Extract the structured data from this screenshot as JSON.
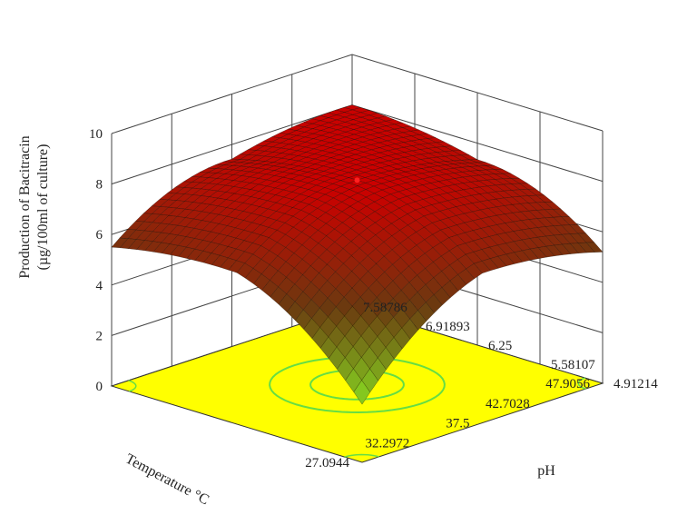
{
  "chart_data": {
    "type": "surface",
    "zlabel_line1": "Production of Bacitracin",
    "zlabel_line2": "(µg/100ml of culture)",
    "xlabel": "Temperature °C",
    "ylabel": "pH",
    "z_ticks": [
      "0",
      "2",
      "4",
      "6",
      "8",
      "10"
    ],
    "z_range": [
      0,
      10
    ],
    "temperature_ticks": [
      "27.0944",
      "32.2972",
      "37.5",
      "42.7028",
      "47.9056"
    ],
    "temperature_range": [
      27.0944,
      47.9056
    ],
    "ph_ticks": [
      "4.91214",
      "5.58107",
      "6.25",
      "6.91893",
      "7.58786"
    ],
    "ph_range": [
      4.91214,
      7.58786
    ],
    "optimum": {
      "temperature": 37.5,
      "ph": 6.25,
      "production": 8.1
    },
    "corner_values": [
      {
        "temperature": 27.0944,
        "ph": 4.91214,
        "production": 2.3
      },
      {
        "temperature": 47.9056,
        "ph": 4.91214,
        "production": 5.2
      },
      {
        "temperature": 27.0944,
        "ph": 7.58786,
        "production": 5.5
      },
      {
        "temperature": 47.9056,
        "ph": 7.58786,
        "production": 8.0
      }
    ],
    "colors": {
      "floor": "#ffff00",
      "contour": "#66dd44",
      "high": "#cc0000",
      "mid": "#6b3a10",
      "low": "#88dd22",
      "grid": "#444444"
    }
  }
}
